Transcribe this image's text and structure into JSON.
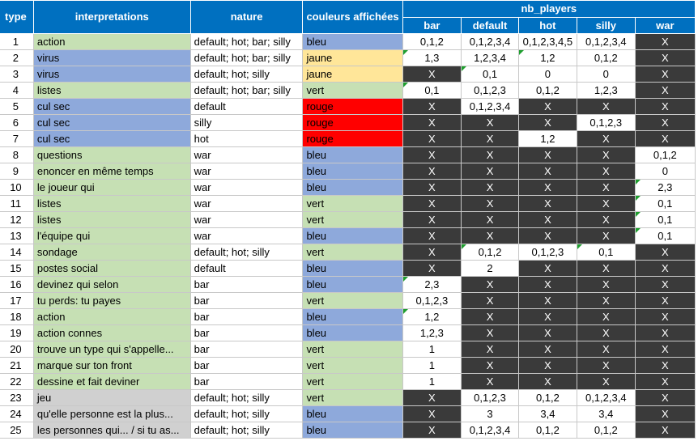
{
  "headers": {
    "type": "type",
    "interpretations": "interpretations",
    "nature": "nature",
    "couleurs": "couleurs affichées",
    "nb_players": "nb_players",
    "sub": [
      "bar",
      "default",
      "hot",
      "silly",
      "war"
    ]
  },
  "colors": {
    "header": "#0070c0",
    "green": "#c6e0b4",
    "blue": "#8ea9db",
    "yellow": "#ffe699",
    "red": "#ff0000",
    "gray": "#d0d0d0",
    "dark": "#3a3a3a",
    "comment_flag": "#1e9e2e"
  },
  "rows": [
    {
      "type": "1",
      "interp": "action",
      "interp_color": "green",
      "nature": "default; hot; bar; silly",
      "couleur": "bleu",
      "couleur_color": "blue",
      "couleur_bold": true,
      "cells": [
        {
          "v": "0,1,2",
          "dark": false
        },
        {
          "v": "0,1,2,3,4",
          "dark": false
        },
        {
          "v": "0,1,2,3,4,5",
          "dark": false
        },
        {
          "v": "0,1,2,3,4",
          "dark": false
        },
        {
          "v": "X",
          "dark": true
        }
      ]
    },
    {
      "type": "2",
      "interp": "virus",
      "interp_color": "blue",
      "nature": "default; hot; bar; silly",
      "couleur": "jaune",
      "couleur_color": "yellow",
      "couleur_bold": true,
      "cells": [
        {
          "v": "1,3",
          "dark": false,
          "flag": true
        },
        {
          "v": "1,2,3,4",
          "dark": false
        },
        {
          "v": "1,2",
          "dark": false,
          "flag": true
        },
        {
          "v": "0,1,2",
          "dark": false
        },
        {
          "v": "X",
          "dark": true
        }
      ]
    },
    {
      "type": "3",
      "interp": "virus",
      "interp_color": "blue",
      "nature": "default; hot; silly",
      "couleur": "jaune",
      "couleur_color": "yellow",
      "couleur_bold": true,
      "cells": [
        {
          "v": "X",
          "dark": true
        },
        {
          "v": "0,1",
          "dark": false,
          "flag": true
        },
        {
          "v": "0",
          "dark": false
        },
        {
          "v": "0",
          "dark": false
        },
        {
          "v": "X",
          "dark": true
        }
      ]
    },
    {
      "type": "4",
      "interp": "listes",
      "interp_color": "green",
      "nature": "default; hot; bar; silly",
      "couleur": "vert",
      "couleur_color": "green",
      "couleur_bold": true,
      "cells": [
        {
          "v": "0,1",
          "dark": false,
          "flag": true
        },
        {
          "v": "0,1,2,3",
          "dark": false
        },
        {
          "v": "0,1,2",
          "dark": false
        },
        {
          "v": "1,2,3",
          "dark": false
        },
        {
          "v": "X",
          "dark": true
        }
      ]
    },
    {
      "type": "5",
      "interp": "cul sec",
      "interp_color": "blue",
      "nature": "default",
      "couleur": "rouge",
      "couleur_color": "red",
      "couleur_bold": false,
      "cells": [
        {
          "v": "X",
          "dark": true
        },
        {
          "v": "0,1,2,3,4",
          "dark": false
        },
        {
          "v": "X",
          "dark": true
        },
        {
          "v": "X",
          "dark": true
        },
        {
          "v": "X",
          "dark": true
        }
      ]
    },
    {
      "type": "6",
      "interp": "cul sec",
      "interp_color": "blue",
      "nature": "silly",
      "couleur": "rouge",
      "couleur_color": "red",
      "couleur_bold": false,
      "cells": [
        {
          "v": "X",
          "dark": true
        },
        {
          "v": "X",
          "dark": true
        },
        {
          "v": "X",
          "dark": true
        },
        {
          "v": "0,1,2,3",
          "dark": false
        },
        {
          "v": "X",
          "dark": true
        }
      ]
    },
    {
      "type": "7",
      "interp": "cul sec",
      "interp_color": "blue",
      "nature": "hot",
      "couleur": "rouge",
      "couleur_color": "red",
      "couleur_bold": false,
      "cells": [
        {
          "v": "X",
          "dark": true
        },
        {
          "v": "X",
          "dark": true
        },
        {
          "v": "1,2",
          "dark": false
        },
        {
          "v": "X",
          "dark": true
        },
        {
          "v": "X",
          "dark": true
        }
      ]
    },
    {
      "type": "8",
      "interp": "questions",
      "interp_color": "green",
      "nature": "war",
      "couleur": "bleu",
      "couleur_color": "blue",
      "couleur_bold": false,
      "cells": [
        {
          "v": "X",
          "dark": true
        },
        {
          "v": "X",
          "dark": true
        },
        {
          "v": "X",
          "dark": true
        },
        {
          "v": "X",
          "dark": true
        },
        {
          "v": "0,1,2",
          "dark": false
        }
      ]
    },
    {
      "type": "9",
      "interp": "enoncer en même temps",
      "interp_color": "green",
      "nature": "war",
      "couleur": "bleu",
      "couleur_color": "blue",
      "couleur_bold": false,
      "cells": [
        {
          "v": "X",
          "dark": true
        },
        {
          "v": "X",
          "dark": true
        },
        {
          "v": "X",
          "dark": true
        },
        {
          "v": "X",
          "dark": true
        },
        {
          "v": "0",
          "dark": false
        }
      ]
    },
    {
      "type": "10",
      "interp": "le joueur qui",
      "interp_color": "green",
      "nature": "war",
      "couleur": "bleu",
      "couleur_color": "blue",
      "couleur_bold": false,
      "cells": [
        {
          "v": "X",
          "dark": true
        },
        {
          "v": "X",
          "dark": true
        },
        {
          "v": "X",
          "dark": true
        },
        {
          "v": "X",
          "dark": true
        },
        {
          "v": "2,3",
          "dark": false,
          "flag": true
        }
      ]
    },
    {
      "type": "11",
      "interp": "listes",
      "interp_color": "green",
      "nature": "war",
      "couleur": "vert",
      "couleur_color": "green",
      "couleur_bold": false,
      "cells": [
        {
          "v": "X",
          "dark": true
        },
        {
          "v": "X",
          "dark": true
        },
        {
          "v": "X",
          "dark": true
        },
        {
          "v": "X",
          "dark": true
        },
        {
          "v": "0,1",
          "dark": false,
          "flag": true
        }
      ]
    },
    {
      "type": "12",
      "interp": "listes",
      "interp_color": "green",
      "nature": "war",
      "couleur": "vert",
      "couleur_color": "green",
      "couleur_bold": false,
      "cells": [
        {
          "v": "X",
          "dark": true
        },
        {
          "v": "X",
          "dark": true
        },
        {
          "v": "X",
          "dark": true
        },
        {
          "v": "X",
          "dark": true
        },
        {
          "v": "0,1",
          "dark": false,
          "flag": true
        }
      ]
    },
    {
      "type": "13",
      "interp": "l'équipe qui",
      "interp_color": "green",
      "nature": "war",
      "couleur": "bleu",
      "couleur_color": "blue",
      "couleur_bold": false,
      "cells": [
        {
          "v": "X",
          "dark": true
        },
        {
          "v": "X",
          "dark": true
        },
        {
          "v": "X",
          "dark": true
        },
        {
          "v": "X",
          "dark": true
        },
        {
          "v": "0,1",
          "dark": false,
          "flag": true
        }
      ]
    },
    {
      "type": "14",
      "interp": "sondage",
      "interp_color": "green",
      "nature": "default; hot; silly",
      "couleur": "vert",
      "couleur_color": "green",
      "couleur_bold": true,
      "cells": [
        {
          "v": "X",
          "dark": true
        },
        {
          "v": "0,1,2",
          "dark": false,
          "flag": true
        },
        {
          "v": "0,1,2,3",
          "dark": false
        },
        {
          "v": "0,1",
          "dark": false,
          "flag": true
        },
        {
          "v": "X",
          "dark": true
        }
      ]
    },
    {
      "type": "15",
      "interp": "postes social",
      "interp_color": "green",
      "nature": "default",
      "couleur": "bleu",
      "couleur_color": "blue",
      "couleur_bold": true,
      "cells": [
        {
          "v": "X",
          "dark": true
        },
        {
          "v": "2",
          "dark": false
        },
        {
          "v": "X",
          "dark": true
        },
        {
          "v": "X",
          "dark": true
        },
        {
          "v": "X",
          "dark": true
        }
      ]
    },
    {
      "type": "16",
      "interp": "devinez qui selon",
      "interp_color": "green",
      "nature": "bar",
      "couleur": "bleu",
      "couleur_color": "blue",
      "couleur_bold": false,
      "cells": [
        {
          "v": "2,3",
          "dark": false,
          "flag": true
        },
        {
          "v": "X",
          "dark": true
        },
        {
          "v": "X",
          "dark": true
        },
        {
          "v": "X",
          "dark": true
        },
        {
          "v": "X",
          "dark": true
        }
      ]
    },
    {
      "type": "17",
      "interp": "tu perds: tu payes",
      "interp_color": "green",
      "nature": "bar",
      "couleur": "vert",
      "couleur_color": "green",
      "couleur_bold": false,
      "cells": [
        {
          "v": "0,1,2,3",
          "dark": false
        },
        {
          "v": "X",
          "dark": true
        },
        {
          "v": "X",
          "dark": true
        },
        {
          "v": "X",
          "dark": true
        },
        {
          "v": "X",
          "dark": true
        }
      ]
    },
    {
      "type": "18",
      "interp": "action",
      "interp_color": "green",
      "nature": "bar",
      "couleur": "bleu",
      "couleur_color": "blue",
      "couleur_bold": false,
      "cells": [
        {
          "v": "1,2",
          "dark": false,
          "flag": true
        },
        {
          "v": "X",
          "dark": true
        },
        {
          "v": "X",
          "dark": true
        },
        {
          "v": "X",
          "dark": true
        },
        {
          "v": "X",
          "dark": true
        }
      ]
    },
    {
      "type": "19",
      "interp": "action connes",
      "interp_color": "green",
      "nature": "bar",
      "couleur": "bleu",
      "couleur_color": "blue",
      "couleur_bold": false,
      "cells": [
        {
          "v": "1,2,3",
          "dark": false
        },
        {
          "v": "X",
          "dark": true
        },
        {
          "v": "X",
          "dark": true
        },
        {
          "v": "X",
          "dark": true
        },
        {
          "v": "X",
          "dark": true
        }
      ]
    },
    {
      "type": "20",
      "interp": "trouve un type qui s'appelle...",
      "interp_color": "green",
      "nature": "bar",
      "couleur": "vert",
      "couleur_color": "green",
      "couleur_bold": false,
      "cells": [
        {
          "v": "1",
          "dark": false
        },
        {
          "v": "X",
          "dark": true
        },
        {
          "v": "X",
          "dark": true
        },
        {
          "v": "X",
          "dark": true
        },
        {
          "v": "X",
          "dark": true
        }
      ]
    },
    {
      "type": "21",
      "interp": "marque sur ton front",
      "interp_color": "green",
      "nature": "bar",
      "couleur": "vert",
      "couleur_color": "green",
      "couleur_bold": false,
      "cells": [
        {
          "v": "1",
          "dark": false
        },
        {
          "v": "X",
          "dark": true
        },
        {
          "v": "X",
          "dark": true
        },
        {
          "v": "X",
          "dark": true
        },
        {
          "v": "X",
          "dark": true
        }
      ]
    },
    {
      "type": "22",
      "interp": "dessine et fait deviner",
      "interp_color": "green",
      "nature": "bar",
      "couleur": "vert",
      "couleur_color": "green",
      "couleur_bold": false,
      "cells": [
        {
          "v": "1",
          "dark": false
        },
        {
          "v": "X",
          "dark": true
        },
        {
          "v": "X",
          "dark": true
        },
        {
          "v": "X",
          "dark": true
        },
        {
          "v": "X",
          "dark": true
        }
      ]
    },
    {
      "type": "23",
      "interp": "jeu",
      "interp_color": "gray",
      "nature": "default; hot; silly",
      "couleur": "vert",
      "couleur_color": "green",
      "couleur_bold": true,
      "cells": [
        {
          "v": "X",
          "dark": true
        },
        {
          "v": "0,1,2,3",
          "dark": false
        },
        {
          "v": "0,1,2",
          "dark": false
        },
        {
          "v": "0,1,2,3,4",
          "dark": false
        },
        {
          "v": "X",
          "dark": true
        }
      ]
    },
    {
      "type": "24",
      "interp": "qu'elle personne est la plus...",
      "interp_color": "gray",
      "nature": "default; hot; silly",
      "couleur": "bleu",
      "couleur_color": "blue",
      "couleur_bold": true,
      "cells": [
        {
          "v": "X",
          "dark": true
        },
        {
          "v": "3",
          "dark": false
        },
        {
          "v": "3,4",
          "dark": false
        },
        {
          "v": "3,4",
          "dark": false
        },
        {
          "v": "X",
          "dark": true
        }
      ]
    },
    {
      "type": "25",
      "interp": "les personnes qui... / si tu as...",
      "interp_color": "gray",
      "nature": "default; hot; silly",
      "couleur": "bleu",
      "couleur_color": "blue",
      "couleur_bold": true,
      "cells": [
        {
          "v": "X",
          "dark": true
        },
        {
          "v": "0,1,2,3,4",
          "dark": false
        },
        {
          "v": "0,1,2",
          "dark": false
        },
        {
          "v": "0,1,2",
          "dark": false
        },
        {
          "v": "X",
          "dark": true
        }
      ]
    }
  ]
}
